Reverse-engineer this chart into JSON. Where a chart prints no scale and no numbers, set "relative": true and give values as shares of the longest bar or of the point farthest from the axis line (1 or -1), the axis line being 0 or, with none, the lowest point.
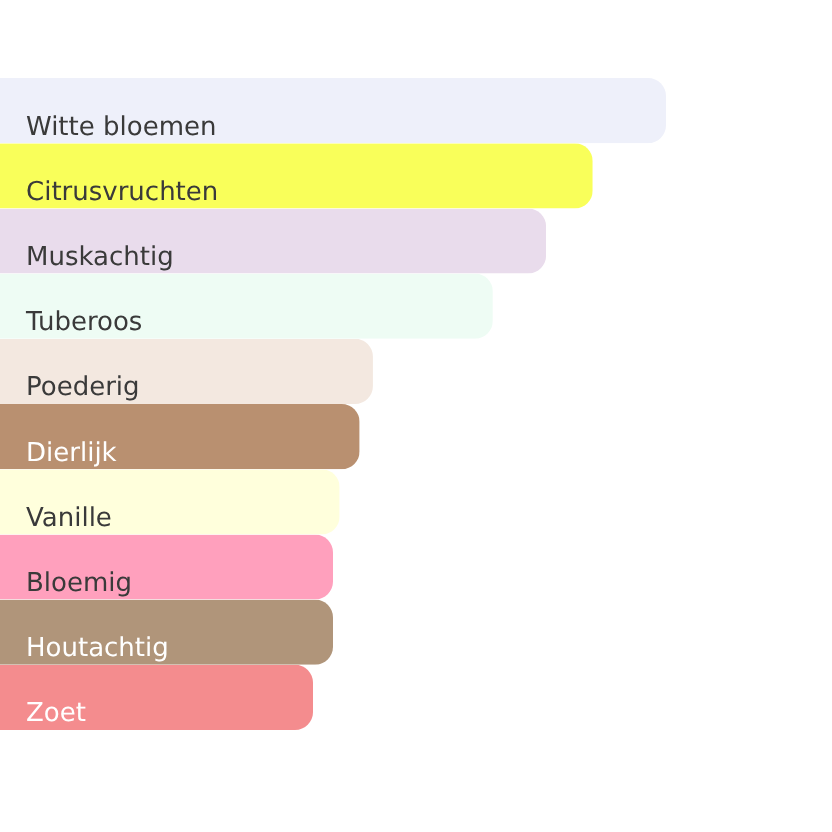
{
  "chart_data": {
    "type": "bar",
    "orientation": "horizontal",
    "relative": true,
    "categories": [
      "Witte bloemen",
      "Citrusvruchten",
      "Muskachtig",
      "Tuberoos",
      "Poederig",
      "Dierlijk",
      "Vanille",
      "Bloemig",
      "Houtachtig",
      "Zoet"
    ],
    "values": [
      1,
      0.89,
      0.82,
      0.74,
      0.56,
      0.54,
      0.51,
      0.5,
      0.5,
      0.47
    ],
    "colors": [
      "#eef0fa",
      "#f9ff5a",
      "#e9dcec",
      "#eefcf4",
      "#f3e8e0",
      "#b99070",
      "#ffffdc",
      "#ffa0bd",
      "#b0957a",
      "#f48c8e"
    ]
  }
}
